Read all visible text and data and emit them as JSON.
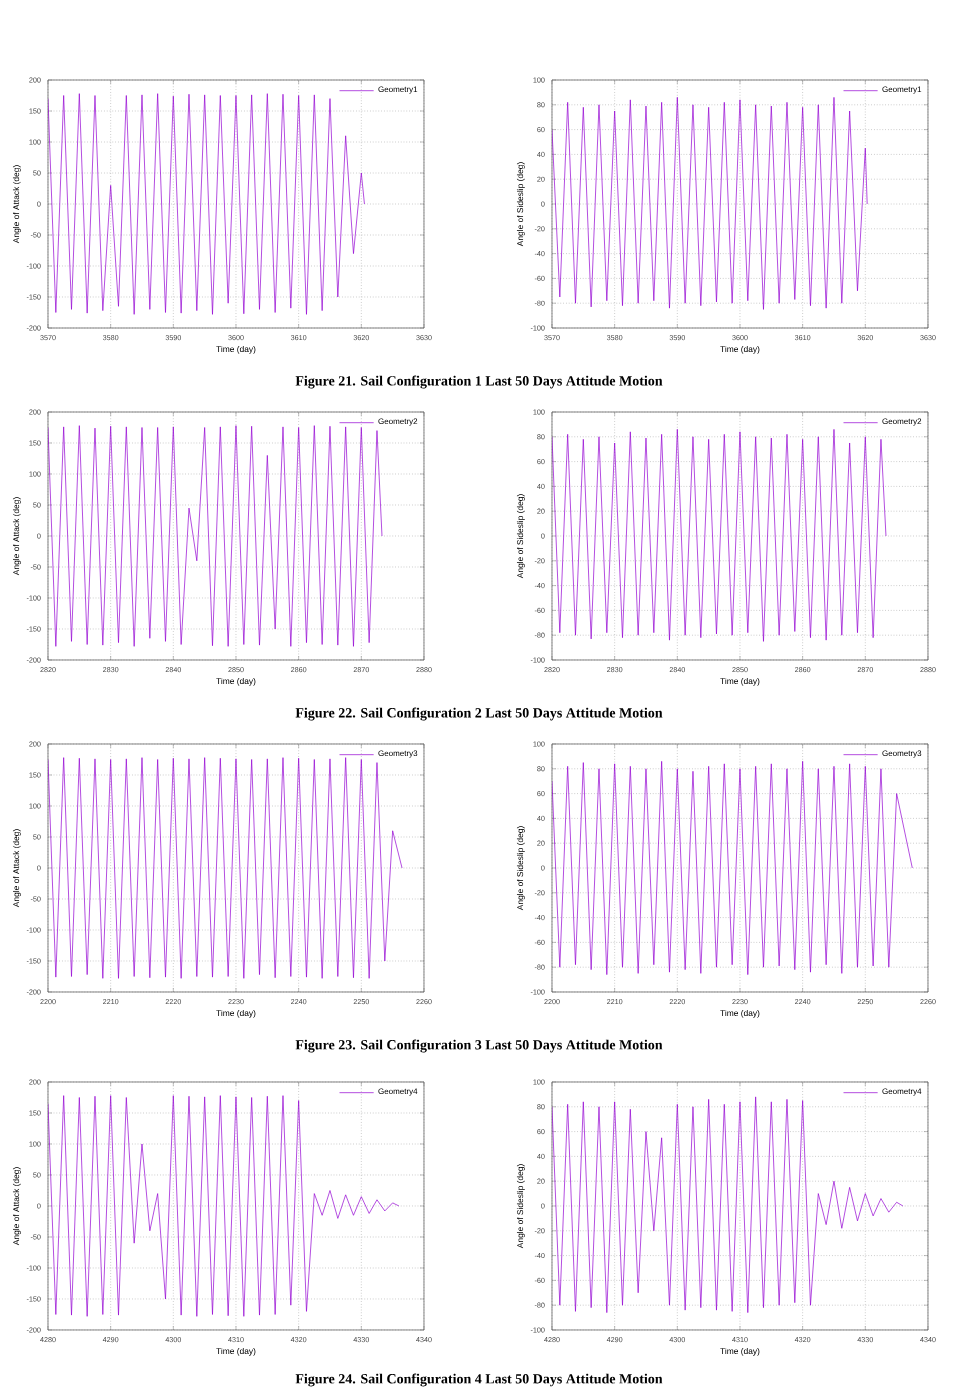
{
  "chart_data": [
    {
      "type": "line",
      "xlabel": "Time (day)",
      "ylabel": "Angle of Attack (deg)",
      "xlim": [
        3570,
        3630
      ],
      "ylim": [
        -200,
        200
      ],
      "xticks": [
        3570,
        3580,
        3590,
        3600,
        3610,
        3620,
        3630
      ],
      "yticks": [
        -200,
        -150,
        -100,
        -50,
        0,
        50,
        100,
        150,
        200
      ],
      "grid": true,
      "legend": "top right",
      "marker": "none",
      "line_style": "solid",
      "annotations": [
        "Figure 21.  Sail Configuration 1 Last 50 Days Attitude Motion"
      ],
      "series": [
        {
          "name": "Geometry1",
          "color": "#9400d3",
          "x": [
            3570,
            3571.25,
            3572.5,
            3573.75,
            3575,
            3576.25,
            3577.5,
            3578.75,
            3580,
            3581.25,
            3582.5,
            3583.75,
            3585,
            3586.25,
            3587.5,
            3588.75,
            3590,
            3591.25,
            3592.5,
            3593.75,
            3595,
            3596.25,
            3597.5,
            3598.75,
            3600,
            3601.25,
            3602.5,
            3603.75,
            3605,
            3606.25,
            3607.5,
            3608.75,
            3610,
            3611.25,
            3612.5,
            3613.75,
            3615,
            3616.25,
            3617.5,
            3618.75,
            3620,
            3620.5
          ],
          "values": [
            170,
            -175,
            175,
            -170,
            178,
            -176,
            175,
            -172,
            30,
            -165,
            175,
            -178,
            176,
            -170,
            178,
            -175,
            174,
            -176,
            177,
            -172,
            176,
            -178,
            175,
            -160,
            175,
            -177,
            176,
            -170,
            178,
            -175,
            177,
            -168,
            175,
            -178,
            176,
            -172,
            170,
            -150,
            110,
            -80,
            50,
            0
          ]
        }
      ]
    },
    {
      "type": "line",
      "xlabel": "Time (day)",
      "ylabel": "Angle of Sideslip (deg)",
      "xlim": [
        3570,
        3630
      ],
      "ylim": [
        -100,
        100
      ],
      "xticks": [
        3570,
        3580,
        3590,
        3600,
        3610,
        3620,
        3630
      ],
      "yticks": [
        -100,
        -80,
        -60,
        -40,
        -20,
        0,
        20,
        40,
        60,
        80,
        100
      ],
      "grid": true,
      "legend": "top right",
      "marker": "none",
      "line_style": "solid",
      "series": [
        {
          "name": "Geometry1",
          "color": "#9400d3",
          "x": [
            3570,
            3571.25,
            3572.5,
            3573.75,
            3575,
            3576.25,
            3577.5,
            3578.75,
            3580,
            3581.25,
            3582.5,
            3583.75,
            3585,
            3586.25,
            3587.5,
            3588.75,
            3590,
            3591.25,
            3592.5,
            3593.75,
            3595,
            3596.25,
            3597.5,
            3598.75,
            3600,
            3601.25,
            3602.5,
            3603.75,
            3605,
            3606.25,
            3607.5,
            3608.75,
            3610,
            3611.25,
            3612.5,
            3613.75,
            3615,
            3616.25,
            3617.5,
            3618.75,
            3620,
            3620.3
          ],
          "values": [
            60,
            -75,
            82,
            -80,
            78,
            -83,
            80,
            -78,
            75,
            -82,
            84,
            -80,
            79,
            -78,
            82,
            -84,
            86,
            -80,
            80,
            -82,
            78,
            -79,
            82,
            -80,
            84,
            -78,
            80,
            -85,
            79,
            -80,
            82,
            -77,
            78,
            -82,
            80,
            -84,
            86,
            -80,
            75,
            -70,
            45,
            0
          ]
        }
      ]
    },
    {
      "type": "line",
      "xlabel": "Time (day)",
      "ylabel": "Angle of Attack (deg)",
      "xlim": [
        2820,
        2880
      ],
      "ylim": [
        -200,
        200
      ],
      "xticks": [
        2820,
        2830,
        2840,
        2850,
        2860,
        2870,
        2880
      ],
      "yticks": [
        -200,
        -150,
        -100,
        -50,
        0,
        50,
        100,
        150,
        200
      ],
      "grid": true,
      "legend": "top right",
      "marker": "none",
      "line_style": "solid",
      "annotations": [
        "Figure 22.  Sail Configuration 2 Last 50 Days Attitude Motion"
      ],
      "series": [
        {
          "name": "Geometry2",
          "color": "#9400d3",
          "x": [
            2820,
            2821.25,
            2822.5,
            2823.75,
            2825,
            2826.25,
            2827.5,
            2828.75,
            2830,
            2831.25,
            2832.5,
            2833.75,
            2835,
            2836.25,
            2837.5,
            2838.75,
            2840,
            2841.25,
            2842.5,
            2843.75,
            2845,
            2846.25,
            2847.5,
            2848.75,
            2850,
            2851.25,
            2852.5,
            2853.75,
            2855,
            2856.25,
            2857.5,
            2858.75,
            2860,
            2861.25,
            2862.5,
            2863.75,
            2865,
            2866.25,
            2867.5,
            2868.75,
            2870,
            2871.25,
            2872.5,
            2873.3
          ],
          "values": [
            175,
            -178,
            176,
            -170,
            178,
            -175,
            174,
            -176,
            177,
            -172,
            176,
            -178,
            175,
            -165,
            175,
            -170,
            176,
            -175,
            45,
            -40,
            175,
            -177,
            176,
            -178,
            178,
            -175,
            177,
            -176,
            130,
            -150,
            176,
            -178,
            175,
            -172,
            178,
            -175,
            177,
            -176,
            176,
            -178,
            175,
            -172,
            170,
            0
          ]
        }
      ]
    },
    {
      "type": "line",
      "xlabel": "Time (day)",
      "ylabel": "Angle of Sideslip (deg)",
      "xlim": [
        2820,
        2880
      ],
      "ylim": [
        -100,
        100
      ],
      "xticks": [
        2820,
        2830,
        2840,
        2850,
        2860,
        2870,
        2880
      ],
      "yticks": [
        -100,
        -80,
        -60,
        -40,
        -20,
        0,
        20,
        40,
        60,
        80,
        100
      ],
      "grid": true,
      "legend": "top right",
      "marker": "none",
      "line_style": "solid",
      "series": [
        {
          "name": "Geometry2",
          "color": "#9400d3",
          "x": [
            2820,
            2821.25,
            2822.5,
            2823.75,
            2825,
            2826.25,
            2827.5,
            2828.75,
            2830,
            2831.25,
            2832.5,
            2833.75,
            2835,
            2836.25,
            2837.5,
            2838.75,
            2840,
            2841.25,
            2842.5,
            2843.75,
            2845,
            2846.25,
            2847.5,
            2848.75,
            2850,
            2851.25,
            2852.5,
            2853.75,
            2855,
            2856.25,
            2857.5,
            2858.75,
            2860,
            2861.25,
            2862.5,
            2863.75,
            2865,
            2866.25,
            2867.5,
            2868.75,
            2870,
            2871.25,
            2872.5,
            2873.3
          ],
          "values": [
            80,
            -78,
            82,
            -80,
            78,
            -83,
            80,
            -78,
            75,
            -82,
            84,
            -80,
            79,
            -78,
            82,
            -84,
            86,
            -80,
            80,
            -82,
            78,
            -79,
            82,
            -80,
            84,
            -78,
            80,
            -85,
            79,
            -80,
            82,
            -77,
            78,
            -82,
            80,
            -84,
            86,
            -80,
            75,
            -78,
            80,
            -82,
            78,
            0
          ]
        }
      ]
    },
    {
      "type": "line",
      "xlabel": "Time (day)",
      "ylabel": "Angle of Attack (deg)",
      "xlim": [
        2200,
        2260
      ],
      "ylim": [
        -200,
        200
      ],
      "xticks": [
        2200,
        2210,
        2220,
        2230,
        2240,
        2250,
        2260
      ],
      "yticks": [
        -200,
        -150,
        -100,
        -50,
        0,
        50,
        100,
        150,
        200
      ],
      "grid": true,
      "legend": "top right",
      "marker": "none",
      "line_style": "solid",
      "annotations": [
        "Figure 23.  Sail Configuration 3 Last 50 Days Attitude Motion"
      ],
      "series": [
        {
          "name": "Geometry3",
          "color": "#9400d3",
          "x": [
            2200,
            2201.25,
            2202.5,
            2203.75,
            2205,
            2206.25,
            2207.5,
            2208.75,
            2210,
            2211.25,
            2212.5,
            2213.75,
            2215,
            2216.25,
            2217.5,
            2218.75,
            2220,
            2221.25,
            2222.5,
            2223.75,
            2225,
            2226.25,
            2227.5,
            2228.75,
            2230,
            2231.25,
            2232.5,
            2233.75,
            2235,
            2236.25,
            2237.5,
            2238.75,
            2240,
            2241.25,
            2242.5,
            2243.75,
            2245,
            2246.25,
            2247.5,
            2248.75,
            2250,
            2251.25,
            2252.5,
            2253.75,
            2255,
            2256.5
          ],
          "values": [
            175,
            -176,
            178,
            -175,
            177,
            -172,
            176,
            -178,
            175,
            -178,
            176,
            -175,
            178,
            -177,
            175,
            -176,
            177,
            -178,
            176,
            -175,
            178,
            -176,
            177,
            -175,
            176,
            -178,
            175,
            -172,
            176,
            -177,
            178,
            -175,
            177,
            -176,
            175,
            -178,
            176,
            -175,
            178,
            -177,
            175,
            -178,
            170,
            -150,
            60,
            0
          ]
        }
      ]
    },
    {
      "type": "line",
      "xlabel": "Time (day)",
      "ylabel": "Angle of Sideslip (deg)",
      "xlim": [
        2200,
        2260
      ],
      "ylim": [
        -100,
        100
      ],
      "xticks": [
        2200,
        2210,
        2220,
        2230,
        2240,
        2250,
        2260
      ],
      "yticks": [
        -100,
        -80,
        -60,
        -40,
        -20,
        0,
        20,
        40,
        60,
        80,
        100
      ],
      "grid": true,
      "legend": "top right",
      "marker": "none",
      "line_style": "solid",
      "series": [
        {
          "name": "Geometry3",
          "color": "#9400d3",
          "x": [
            2200,
            2201.25,
            2202.5,
            2203.75,
            2205,
            2206.25,
            2207.5,
            2208.75,
            2210,
            2211.25,
            2212.5,
            2213.75,
            2215,
            2216.25,
            2217.5,
            2218.75,
            2220,
            2221.25,
            2222.5,
            2223.75,
            2225,
            2226.25,
            2227.5,
            2228.75,
            2230,
            2231.25,
            2232.5,
            2233.75,
            2235,
            2236.25,
            2237.5,
            2238.75,
            2240,
            2241.25,
            2242.5,
            2243.75,
            2245,
            2246.25,
            2247.5,
            2248.75,
            2250,
            2251.25,
            2252.5,
            2253.75,
            2255,
            2257.5
          ],
          "values": [
            70,
            -80,
            82,
            -78,
            85,
            -82,
            80,
            -86,
            84,
            -80,
            82,
            -85,
            80,
            -78,
            86,
            -84,
            80,
            -82,
            78,
            -85,
            82,
            -80,
            84,
            -78,
            80,
            -86,
            82,
            -80,
            84,
            -79,
            80,
            -82,
            86,
            -84,
            80,
            -78,
            82,
            -85,
            84,
            -80,
            82,
            -79,
            80,
            -80,
            60,
            0
          ]
        }
      ]
    },
    {
      "type": "line",
      "xlabel": "Time (day)",
      "ylabel": "Angle of Attack (deg)",
      "xlim": [
        4280,
        4340
      ],
      "ylim": [
        -200,
        200
      ],
      "xticks": [
        4280,
        4290,
        4300,
        4310,
        4320,
        4330,
        4340
      ],
      "yticks": [
        -200,
        -150,
        -100,
        -50,
        0,
        50,
        100,
        150,
        200
      ],
      "grid": true,
      "legend": "top right",
      "marker": "none",
      "line_style": "solid",
      "annotations": [
        "Figure 24.  Sail Configuration 4 Last 50 Days Attitude Motion"
      ],
      "series": [
        {
          "name": "Geometry4",
          "color": "#9400d3",
          "x": [
            4280,
            4281.25,
            4282.5,
            4283.75,
            4285,
            4286.25,
            4287.5,
            4288.75,
            4290,
            4291.25,
            4292.5,
            4293.75,
            4295,
            4296.25,
            4297.5,
            4298.75,
            4300,
            4301.25,
            4302.5,
            4303.75,
            4305,
            4306.25,
            4307.5,
            4308.75,
            4310,
            4311.25,
            4312.5,
            4313.75,
            4315,
            4316.25,
            4317.5,
            4318.75,
            4320,
            4321.25,
            4322.5,
            4323.75,
            4325,
            4326.25,
            4327.5,
            4328.75,
            4330,
            4331.25,
            4332.5,
            4333.75,
            4335,
            4336
          ],
          "values": [
            165,
            -175,
            178,
            -176,
            175,
            -178,
            177,
            -175,
            178,
            -176,
            175,
            -60,
            100,
            -40,
            20,
            -150,
            178,
            -176,
            177,
            -178,
            176,
            -175,
            178,
            -177,
            176,
            -178,
            175,
            -176,
            177,
            -175,
            178,
            -160,
            170,
            -170,
            20,
            -15,
            25,
            -20,
            18,
            -15,
            15,
            -12,
            10,
            -8,
            5,
            0
          ]
        }
      ]
    },
    {
      "type": "line",
      "xlabel": "Time (day)",
      "ylabel": "Angle of Sideslip (deg)",
      "xlim": [
        4280,
        4340
      ],
      "ylim": [
        -100,
        100
      ],
      "xticks": [
        4280,
        4290,
        4300,
        4310,
        4320,
        4330,
        4340
      ],
      "yticks": [
        -100,
        -80,
        -60,
        -40,
        -20,
        0,
        20,
        40,
        60,
        80,
        100
      ],
      "grid": true,
      "legend": "top right",
      "marker": "none",
      "line_style": "solid",
      "series": [
        {
          "name": "Geometry4",
          "color": "#9400d3",
          "x": [
            4280,
            4281.25,
            4282.5,
            4283.75,
            4285,
            4286.25,
            4287.5,
            4288.75,
            4290,
            4291.25,
            4292.5,
            4293.75,
            4295,
            4296.25,
            4297.5,
            4298.75,
            4300,
            4301.25,
            4302.5,
            4303.75,
            4305,
            4306.25,
            4307.5,
            4308.75,
            4310,
            4311.25,
            4312.5,
            4313.75,
            4315,
            4316.25,
            4317.5,
            4318.75,
            4320,
            4321.25,
            4322.5,
            4323.75,
            4325,
            4326.25,
            4327.5,
            4328.75,
            4330,
            4331.25,
            4332.5,
            4333.75,
            4335,
            4336
          ],
          "values": [
            80,
            -80,
            82,
            -85,
            84,
            -82,
            80,
            -86,
            84,
            -80,
            78,
            -70,
            60,
            -20,
            55,
            -80,
            82,
            -84,
            80,
            -82,
            86,
            -84,
            82,
            -85,
            84,
            -86,
            88,
            -82,
            84,
            -80,
            86,
            -78,
            85,
            -80,
            10,
            -15,
            20,
            -18,
            15,
            -12,
            10,
            -8,
            6,
            -5,
            3,
            0
          ]
        }
      ]
    }
  ]
}
